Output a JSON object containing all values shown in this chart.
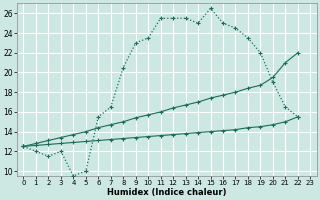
{
  "xlabel": "Humidex (Indice chaleur)",
  "ylabel": "",
  "bg_color": "#cde8e2",
  "grid_color": "#b8d8d2",
  "line_color": "#1a6b5a",
  "xlim": [
    -0.5,
    23.5
  ],
  "ylim": [
    9.5,
    27.0
  ],
  "xticks": [
    0,
    1,
    2,
    3,
    4,
    5,
    6,
    7,
    8,
    9,
    10,
    11,
    12,
    13,
    14,
    15,
    16,
    17,
    18,
    19,
    20,
    21,
    22,
    23
  ],
  "yticks": [
    10,
    12,
    14,
    16,
    18,
    20,
    22,
    24,
    26
  ],
  "series1_x": [
    0,
    1,
    2,
    3,
    4,
    5,
    6,
    7,
    8,
    9,
    10,
    11,
    12,
    13,
    14,
    15,
    16,
    17,
    18,
    19,
    20,
    21,
    22
  ],
  "series1_y": [
    12.5,
    12.0,
    11.5,
    12.0,
    9.5,
    10.0,
    15.5,
    16.5,
    20.5,
    23.0,
    23.5,
    25.5,
    25.5,
    25.5,
    25.0,
    26.5,
    25.0,
    24.5,
    23.5,
    22.0,
    19.0,
    16.5,
    15.5
  ],
  "series2_x": [
    0,
    1,
    2,
    3,
    4,
    5,
    6,
    7,
    8,
    9,
    10,
    11,
    12,
    13,
    14,
    15,
    16,
    17,
    18,
    19,
    20,
    21,
    22
  ],
  "series2_y": [
    12.5,
    12.8,
    13.1,
    13.4,
    13.7,
    14.0,
    14.4,
    14.7,
    15.0,
    15.4,
    15.7,
    16.0,
    16.4,
    16.7,
    17.0,
    17.4,
    17.7,
    18.0,
    18.4,
    18.7,
    19.5,
    21.0,
    22.0
  ],
  "series3_x": [
    0,
    1,
    2,
    3,
    4,
    5,
    6,
    7,
    8,
    9,
    10,
    11,
    12,
    13,
    14,
    15,
    16,
    17,
    18,
    19,
    20,
    21,
    22
  ],
  "series3_y": [
    12.5,
    12.6,
    12.7,
    12.8,
    12.9,
    13.0,
    13.1,
    13.2,
    13.3,
    13.4,
    13.5,
    13.6,
    13.7,
    13.8,
    13.9,
    14.0,
    14.1,
    14.2,
    14.4,
    14.5,
    14.7,
    15.0,
    15.5
  ]
}
